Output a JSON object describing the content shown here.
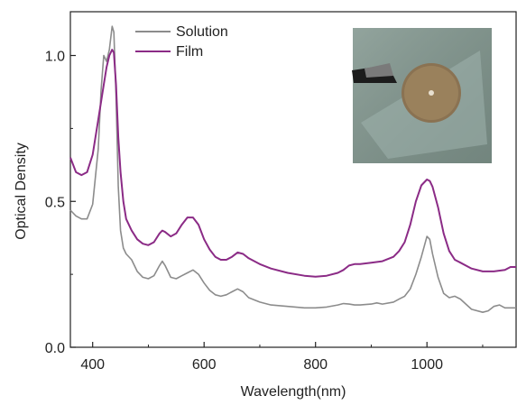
{
  "chart_data": {
    "type": "line",
    "xlabel": "Wavelength(nm)",
    "ylabel": "Optical Density",
    "xlim": [
      360,
      1160
    ],
    "ylim": [
      0.0,
      1.15
    ],
    "x_ticks": [
      400,
      600,
      800,
      1000
    ],
    "x_tick_labels": [
      "400",
      "600",
      "800",
      "1000"
    ],
    "y_ticks": [
      0.0,
      0.5,
      1.0
    ],
    "y_tick_labels": [
      "0.0",
      "0.5",
      "1.0"
    ],
    "legend_position": "top-left",
    "inset": "photo of film sample on glass substrate",
    "series": [
      {
        "name": "Solution",
        "color": "#8c8c8c",
        "x": [
          360,
          370,
          380,
          390,
          400,
          410,
          415,
          420,
          425,
          430,
          435,
          438,
          442,
          446,
          450,
          455,
          460,
          470,
          480,
          490,
          500,
          510,
          520,
          525,
          530,
          540,
          550,
          560,
          570,
          580,
          590,
          600,
          610,
          620,
          630,
          640,
          650,
          660,
          670,
          680,
          700,
          720,
          750,
          780,
          800,
          820,
          840,
          850,
          860,
          870,
          880,
          900,
          910,
          920,
          940,
          950,
          960,
          970,
          980,
          990,
          1000,
          1005,
          1010,
          1020,
          1030,
          1040,
          1050,
          1060,
          1080,
          1100,
          1110,
          1120,
          1130,
          1140,
          1150,
          1160
        ],
        "y": [
          0.47,
          0.45,
          0.44,
          0.44,
          0.49,
          0.68,
          0.88,
          1.0,
          0.98,
          1.02,
          1.1,
          1.08,
          0.86,
          0.55,
          0.4,
          0.34,
          0.32,
          0.3,
          0.26,
          0.24,
          0.235,
          0.245,
          0.28,
          0.295,
          0.28,
          0.24,
          0.235,
          0.245,
          0.255,
          0.265,
          0.25,
          0.22,
          0.195,
          0.18,
          0.175,
          0.18,
          0.19,
          0.2,
          0.19,
          0.17,
          0.155,
          0.145,
          0.14,
          0.135,
          0.135,
          0.138,
          0.145,
          0.15,
          0.148,
          0.145,
          0.145,
          0.148,
          0.152,
          0.148,
          0.155,
          0.165,
          0.175,
          0.2,
          0.25,
          0.31,
          0.38,
          0.37,
          0.32,
          0.24,
          0.185,
          0.17,
          0.175,
          0.165,
          0.13,
          0.12,
          0.125,
          0.14,
          0.145,
          0.135,
          0.135,
          0.135
        ]
      },
      {
        "name": "Film",
        "color": "#8b2b86",
        "x": [
          360,
          370,
          380,
          390,
          400,
          410,
          420,
          425,
          430,
          435,
          438,
          442,
          446,
          450,
          455,
          460,
          470,
          480,
          490,
          500,
          510,
          520,
          525,
          530,
          540,
          550,
          560,
          570,
          580,
          590,
          600,
          610,
          620,
          630,
          640,
          650,
          660,
          670,
          680,
          700,
          720,
          750,
          780,
          800,
          820,
          840,
          850,
          860,
          870,
          880,
          900,
          920,
          940,
          950,
          960,
          970,
          980,
          990,
          1000,
          1005,
          1010,
          1020,
          1030,
          1040,
          1050,
          1060,
          1080,
          1100,
          1120,
          1140,
          1150,
          1160
        ],
        "y": [
          0.65,
          0.6,
          0.59,
          0.6,
          0.66,
          0.78,
          0.9,
          0.96,
          1.0,
          1.02,
          1.01,
          0.9,
          0.72,
          0.6,
          0.5,
          0.44,
          0.4,
          0.37,
          0.355,
          0.35,
          0.36,
          0.39,
          0.4,
          0.395,
          0.38,
          0.39,
          0.42,
          0.445,
          0.445,
          0.42,
          0.37,
          0.335,
          0.31,
          0.3,
          0.3,
          0.31,
          0.325,
          0.32,
          0.305,
          0.285,
          0.27,
          0.255,
          0.245,
          0.242,
          0.245,
          0.255,
          0.265,
          0.28,
          0.285,
          0.285,
          0.29,
          0.295,
          0.31,
          0.33,
          0.36,
          0.42,
          0.5,
          0.555,
          0.575,
          0.57,
          0.55,
          0.48,
          0.39,
          0.33,
          0.3,
          0.29,
          0.27,
          0.26,
          0.26,
          0.265,
          0.275,
          0.275
        ]
      }
    ]
  }
}
